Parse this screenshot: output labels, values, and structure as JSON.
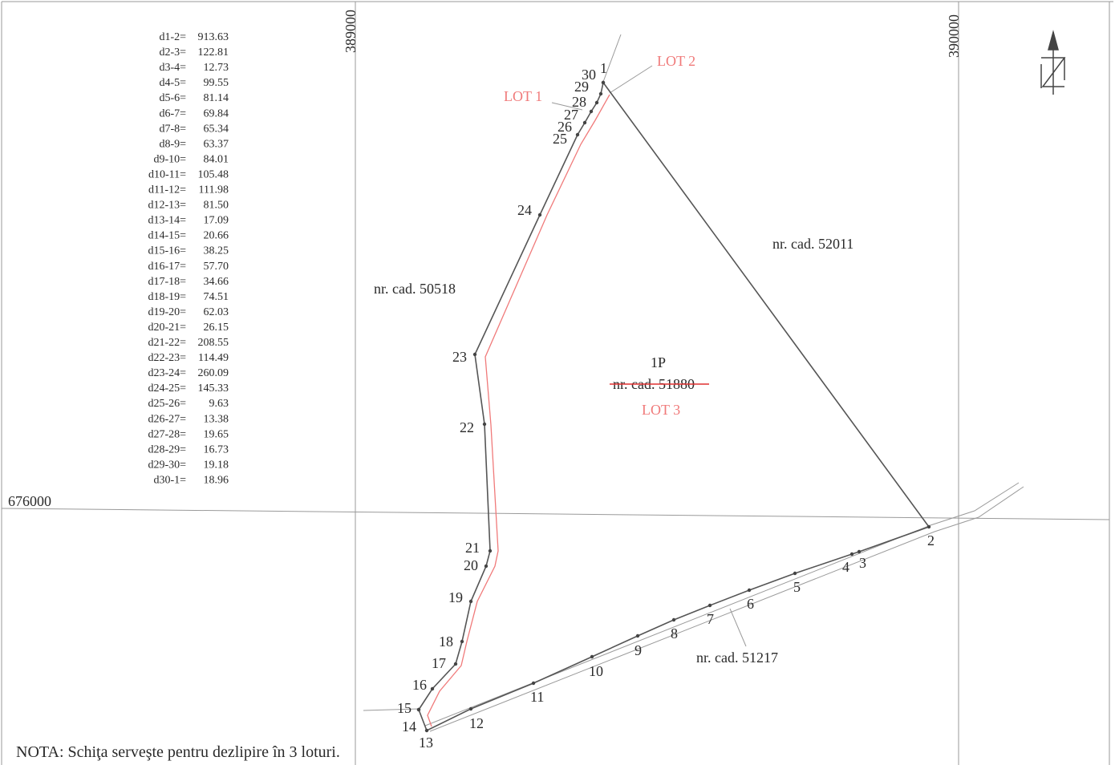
{
  "distances": [
    {
      "label": "d1-2=",
      "value": "913.63"
    },
    {
      "label": "d2-3=",
      "value": "122.81"
    },
    {
      "label": "d3-4=",
      "value": "12.73"
    },
    {
      "label": "d4-5=",
      "value": "99.55"
    },
    {
      "label": "d5-6=",
      "value": "81.14"
    },
    {
      "label": "d6-7=",
      "value": "69.84"
    },
    {
      "label": "d7-8=",
      "value": "65.34"
    },
    {
      "label": "d8-9=",
      "value": "63.37"
    },
    {
      "label": "d9-10=",
      "value": "84.01"
    },
    {
      "label": "d10-11=",
      "value": "105.48"
    },
    {
      "label": "d11-12=",
      "value": "111.98"
    },
    {
      "label": "d12-13=",
      "value": "81.50"
    },
    {
      "label": "d13-14=",
      "value": "17.09"
    },
    {
      "label": "d14-15=",
      "value": "20.66"
    },
    {
      "label": "d15-16=",
      "value": "38.25"
    },
    {
      "label": "d16-17=",
      "value": "57.70"
    },
    {
      "label": "d17-18=",
      "value": "34.66"
    },
    {
      "label": "d18-19=",
      "value": "74.51"
    },
    {
      "label": "d19-20=",
      "value": "62.03"
    },
    {
      "label": "d20-21=",
      "value": "26.15"
    },
    {
      "label": "d21-22=",
      "value": "208.55"
    },
    {
      "label": "d22-23=",
      "value": "114.49"
    },
    {
      "label": "d23-24=",
      "value": "260.09"
    },
    {
      "label": "d24-25=",
      "value": "145.33"
    },
    {
      "label": "d25-26=",
      "value": "9.63"
    },
    {
      "label": "d26-27=",
      "value": "13.38"
    },
    {
      "label": "d27-28=",
      "value": "19.65"
    },
    {
      "label": "d28-29=",
      "value": "16.73"
    },
    {
      "label": "d29-30=",
      "value": "19.18"
    },
    {
      "label": "d30-1=",
      "value": "18.96"
    }
  ],
  "grid": {
    "easting_left": "389000",
    "easting_right": "390000",
    "northing": "676000"
  },
  "cadastral": {
    "west": "nr. cad. 50518",
    "east": "nr. cad. 52011",
    "south": "nr. cad. 51217",
    "parcel_id": "1P",
    "parcel_cad_struck": "nr. cad. 51880"
  },
  "lots": {
    "lot1": "LOT 1",
    "lot2": "LOT 2",
    "lot3": "LOT 3"
  },
  "points": [
    "1",
    "2",
    "3",
    "4",
    "5",
    "6",
    "7",
    "8",
    "9",
    "10",
    "11",
    "12",
    "13",
    "14",
    "15",
    "16",
    "17",
    "18",
    "19",
    "20",
    "21",
    "22",
    "23",
    "24",
    "25",
    "26",
    "27",
    "28",
    "29",
    "30"
  ],
  "note": "NOTA: Schiţa serveşte pentru dezlipire în 3 loturi.",
  "colors": {
    "ink": "#2a2a2a",
    "lot": "#f07a7a",
    "grid": "#8a8a8a"
  }
}
